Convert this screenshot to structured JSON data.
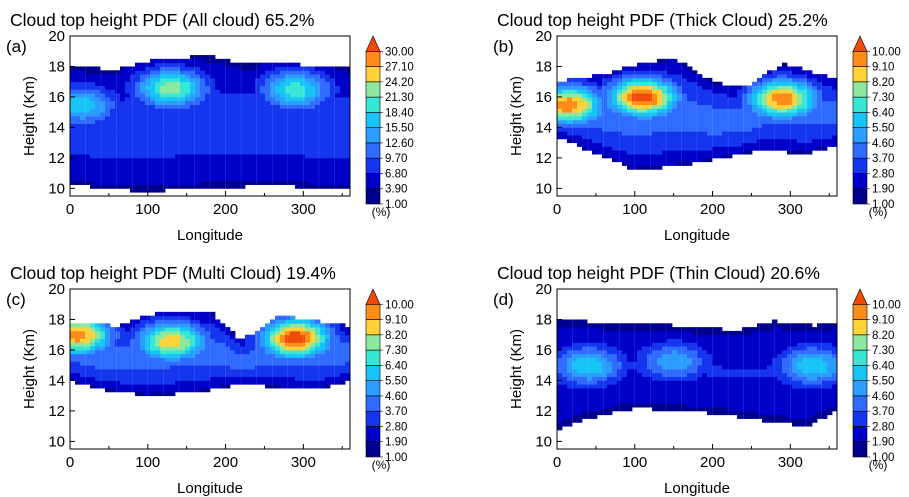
{
  "panels": [
    {
      "letter": "(a)",
      "title": "Cloud top height PDF (All cloud) 65.2%",
      "xlabel": "Longitude",
      "ylabel": "Height (Km)",
      "unit": "(%)",
      "colorbar_labels": [
        "30.00",
        "27.10",
        "24.20",
        "21.30",
        "18.40",
        "15.50",
        "12.60",
        "9.70",
        "6.80",
        "3.90",
        "1.00"
      ]
    },
    {
      "letter": "(b)",
      "title": "Cloud top height PDF (Thick Cloud) 25.2%",
      "xlabel": "Longitude",
      "ylabel": "Height (Km)",
      "unit": "(%)",
      "colorbar_labels": [
        "10.00",
        "9.10",
        "8.20",
        "7.30",
        "6.40",
        "5.50",
        "4.60",
        "3.70",
        "2.80",
        "1.90",
        "1.00"
      ]
    },
    {
      "letter": "(c)",
      "title": "Cloud top height PDF (Multi Cloud) 19.4%",
      "xlabel": "Longitude",
      "ylabel": "Height (Km)",
      "unit": "(%)",
      "colorbar_labels": [
        "10.00",
        "9.10",
        "8.20",
        "7.30",
        "6.40",
        "5.50",
        "4.60",
        "3.70",
        "2.80",
        "1.90",
        "1.00"
      ]
    },
    {
      "letter": "(d)",
      "title": "Cloud top height PDF (Thin Cloud) 20.6%",
      "xlabel": "Longitude",
      "ylabel": "Height (Km)",
      "unit": "(%)",
      "colorbar_labels": [
        "10.00",
        "9.10",
        "8.20",
        "7.30",
        "6.40",
        "5.50",
        "4.60",
        "3.70",
        "2.80",
        "1.90",
        "1.00"
      ]
    }
  ],
  "colors": {
    "levels": [
      "#00008f",
      "#0000c8",
      "#1535ee",
      "#2f6cff",
      "#2c9cff",
      "#18c4f6",
      "#38e6d6",
      "#8ce89e",
      "#ffd23a",
      "#ff8c18",
      "#f04a0a"
    ]
  },
  "chart_data": [
    {
      "type": "heatmap",
      "title": "Cloud top height PDF (All cloud) 65.2%",
      "xlabel": "Longitude",
      "ylabel": "Height (Km)",
      "xlim": [
        0,
        360
      ],
      "ylim": [
        9.5,
        20
      ],
      "xticks": [
        0,
        100,
        200,
        300
      ],
      "yticks": [
        10,
        12,
        14,
        16,
        18,
        20
      ],
      "color_levels": [
        1.0,
        3.9,
        6.8,
        9.7,
        12.6,
        15.5,
        18.4,
        21.3,
        24.2,
        27.1,
        30.0
      ],
      "max_level_index": 7,
      "peaks": [
        {
          "lon": 130,
          "height": 16.6,
          "index": 7
        },
        {
          "lon": 290,
          "height": 16.5,
          "index": 6
        },
        {
          "lon": 15,
          "height": 15.5,
          "index": 5
        }
      ],
      "top_edge": [
        {
          "lon": 0,
          "height": 18.0
        },
        {
          "lon": 60,
          "height": 17.8
        },
        {
          "lon": 110,
          "height": 18.5
        },
        {
          "lon": 180,
          "height": 18.7
        },
        {
          "lon": 220,
          "height": 18.2
        },
        {
          "lon": 270,
          "height": 18.2
        },
        {
          "lon": 330,
          "height": 18.0
        },
        {
          "lon": 360,
          "height": 17.9
        }
      ],
      "bottom_edge": [
        {
          "lon": 0,
          "height": 10.3
        },
        {
          "lon": 40,
          "height": 10.0
        },
        {
          "lon": 100,
          "height": 9.8
        },
        {
          "lon": 160,
          "height": 10.0
        },
        {
          "lon": 210,
          "height": 10.1
        },
        {
          "lon": 270,
          "height": 10.2
        },
        {
          "lon": 320,
          "height": 10.0
        },
        {
          "lon": 360,
          "height": 10.0
        }
      ]
    },
    {
      "type": "heatmap",
      "title": "Cloud top height PDF (Thick Cloud) 25.2%",
      "xlabel": "Longitude",
      "ylabel": "Height (Km)",
      "xlim": [
        0,
        360
      ],
      "ylim": [
        9.5,
        20
      ],
      "xticks": [
        0,
        100,
        200,
        300
      ],
      "yticks": [
        10,
        12,
        14,
        16,
        18,
        20
      ],
      "color_levels": [
        1.0,
        1.9,
        2.8,
        3.7,
        4.6,
        5.5,
        6.4,
        7.3,
        8.2,
        9.1,
        10.0
      ],
      "max_level_index": 10,
      "peaks": [
        {
          "lon": 110,
          "height": 16.0,
          "index": 10
        },
        {
          "lon": 290,
          "height": 15.9,
          "index": 9
        },
        {
          "lon": 15,
          "height": 15.5,
          "index": 9
        }
      ],
      "top_edge": [
        {
          "lon": 0,
          "height": 17.0
        },
        {
          "lon": 60,
          "height": 17.5
        },
        {
          "lon": 110,
          "height": 18.2
        },
        {
          "lon": 150,
          "height": 18.6
        },
        {
          "lon": 200,
          "height": 17.0
        },
        {
          "lon": 240,
          "height": 16.6
        },
        {
          "lon": 290,
          "height": 18.2
        },
        {
          "lon": 360,
          "height": 17.2
        }
      ],
      "bottom_edge": [
        {
          "lon": 0,
          "height": 13.4
        },
        {
          "lon": 40,
          "height": 12.5
        },
        {
          "lon": 100,
          "height": 11.2
        },
        {
          "lon": 160,
          "height": 11.5
        },
        {
          "lon": 210,
          "height": 12.0
        },
        {
          "lon": 260,
          "height": 12.5
        },
        {
          "lon": 320,
          "height": 12.3
        },
        {
          "lon": 360,
          "height": 12.8
        }
      ]
    },
    {
      "type": "heatmap",
      "title": "Cloud top height PDF (Multi Cloud) 19.4%",
      "xlabel": "Longitude",
      "ylabel": "Height (Km)",
      "xlim": [
        0,
        360
      ],
      "ylim": [
        9.5,
        20
      ],
      "xticks": [
        0,
        100,
        200,
        300
      ],
      "yticks": [
        10,
        12,
        14,
        16,
        18,
        20
      ],
      "color_levels": [
        1.0,
        1.9,
        2.8,
        3.7,
        4.6,
        5.5,
        6.4,
        7.3,
        8.2,
        9.1,
        10.0
      ],
      "max_level_index": 10,
      "peaks": [
        {
          "lon": 290,
          "height": 16.8,
          "index": 10
        },
        {
          "lon": 10,
          "height": 17.0,
          "index": 9
        },
        {
          "lon": 130,
          "height": 16.6,
          "index": 8
        }
      ],
      "top_edge": [
        {
          "lon": 0,
          "height": 17.8
        },
        {
          "lon": 60,
          "height": 17.6
        },
        {
          "lon": 110,
          "height": 18.4
        },
        {
          "lon": 180,
          "height": 18.6
        },
        {
          "lon": 220,
          "height": 16.6
        },
        {
          "lon": 270,
          "height": 18.3
        },
        {
          "lon": 330,
          "height": 17.8
        },
        {
          "lon": 360,
          "height": 17.6
        }
      ],
      "bottom_edge": [
        {
          "lon": 0,
          "height": 14.0
        },
        {
          "lon": 40,
          "height": 13.4
        },
        {
          "lon": 100,
          "height": 13.0
        },
        {
          "lon": 160,
          "height": 13.2
        },
        {
          "lon": 220,
          "height": 13.8
        },
        {
          "lon": 270,
          "height": 13.5
        },
        {
          "lon": 320,
          "height": 13.4
        },
        {
          "lon": 360,
          "height": 14.0
        }
      ]
    },
    {
      "type": "heatmap",
      "title": "Cloud top height PDF (Thin Cloud) 20.6%",
      "xlabel": "Longitude",
      "ylabel": "Height (Km)",
      "xlim": [
        0,
        360
      ],
      "ylim": [
        9.5,
        20
      ],
      "xticks": [
        0,
        100,
        200,
        300
      ],
      "yticks": [
        10,
        12,
        14,
        16,
        18,
        20
      ],
      "color_levels": [
        1.0,
        1.9,
        2.8,
        3.7,
        4.6,
        5.5,
        6.4,
        7.3,
        8.2,
        9.1,
        10.0
      ],
      "max_level_index": 5,
      "peaks": [
        {
          "lon": 40,
          "height": 15.0,
          "index": 5
        },
        {
          "lon": 330,
          "height": 15.0,
          "index": 5
        },
        {
          "lon": 150,
          "height": 15.3,
          "index": 4
        }
      ],
      "top_edge": [
        {
          "lon": 0,
          "height": 18.0
        },
        {
          "lon": 60,
          "height": 17.8
        },
        {
          "lon": 130,
          "height": 17.7
        },
        {
          "lon": 180,
          "height": 17.5
        },
        {
          "lon": 230,
          "height": 17.3
        },
        {
          "lon": 280,
          "height": 17.9
        },
        {
          "lon": 330,
          "height": 17.6
        },
        {
          "lon": 360,
          "height": 17.9
        }
      ],
      "bottom_edge": [
        {
          "lon": 0,
          "height": 10.8
        },
        {
          "lon": 40,
          "height": 11.5
        },
        {
          "lon": 100,
          "height": 12.2
        },
        {
          "lon": 160,
          "height": 12.0
        },
        {
          "lon": 210,
          "height": 11.8
        },
        {
          "lon": 260,
          "height": 11.4
        },
        {
          "lon": 320,
          "height": 11.0
        },
        {
          "lon": 360,
          "height": 12.0
        }
      ]
    }
  ]
}
